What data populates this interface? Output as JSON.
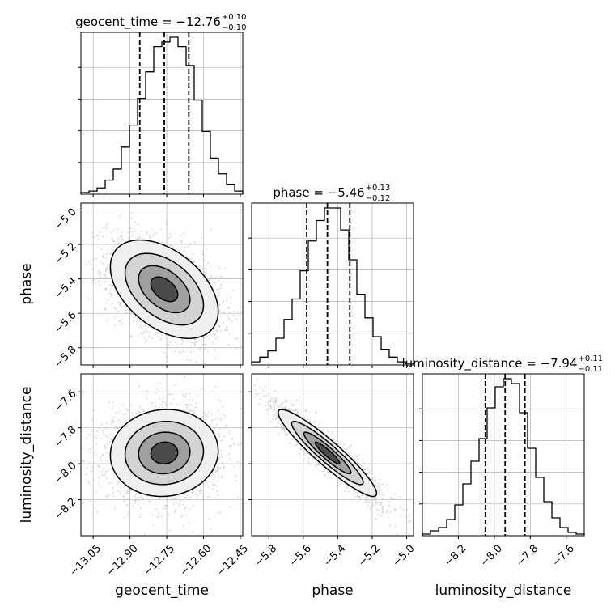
{
  "chart_data": {
    "type": "corner",
    "parameters": [
      "geocent_time",
      "phase",
      "luminosity_distance"
    ],
    "axes": {
      "geocent_time": {
        "range": [
          -13.1,
          -12.44
        ],
        "ticks": [
          -13.05,
          -12.9,
          -12.75,
          -12.6,
          -12.45
        ],
        "tick_labels": [
          "−13.05",
          "−12.90",
          "−12.75",
          "−12.60",
          "−12.45"
        ]
      },
      "phase": {
        "range": [
          -5.9,
          -4.96
        ],
        "ticks": [
          -5.8,
          -5.6,
          -5.4,
          -5.2,
          -5.0
        ],
        "tick_labels": [
          "−5.8",
          "−5.6",
          "−5.4",
          "−5.2",
          "−5.0"
        ]
      },
      "luminosity_distance": {
        "range": [
          -8.4,
          -7.5
        ],
        "ticks": [
          -8.2,
          -8.0,
          -7.8,
          -7.6
        ],
        "tick_labels": [
          "−8.2",
          "−8.0",
          "−7.8",
          "−7.6"
        ]
      }
    },
    "titles": [
      {
        "param": "geocent_time",
        "label": "geocent_time = −12.76",
        "plus": "+0.10",
        "minus": "−0.10"
      },
      {
        "param": "phase",
        "label": "phase = −5.46",
        "plus": "+0.13",
        "minus": "−0.12"
      },
      {
        "param": "luminosity_distance",
        "label": "luminosity_distance = −7.94",
        "plus": "+0.11",
        "minus": "−0.11"
      }
    ],
    "quantiles": {
      "geocent_time": [
        -12.86,
        -12.76,
        -12.66
      ],
      "phase": [
        -5.58,
        -5.46,
        -5.33
      ],
      "luminosity_distance": [
        -8.05,
        -7.94,
        -7.83
      ]
    },
    "histograms": {
      "geocent_time": {
        "edges": [
          -13.1,
          -13.067,
          -13.034,
          -13.001,
          -12.968,
          -12.935,
          -12.902,
          -12.869,
          -12.836,
          -12.803,
          -12.77,
          -12.737,
          -12.704,
          -12.671,
          -12.638,
          -12.605,
          -12.572,
          -12.539,
          -12.506,
          -12.473,
          -12.44
        ],
        "counts": [
          0.01,
          0.02,
          0.04,
          0.09,
          0.16,
          0.3,
          0.44,
          0.61,
          0.78,
          0.94,
          0.97,
          1.0,
          0.94,
          0.82,
          0.6,
          0.4,
          0.23,
          0.13,
          0.06,
          0.02
        ]
      },
      "phase": {
        "edges": [
          -5.9,
          -5.853,
          -5.806,
          -5.759,
          -5.712,
          -5.665,
          -5.618,
          -5.571,
          -5.524,
          -5.477,
          -5.43,
          -5.383,
          -5.336,
          -5.289,
          -5.242,
          -5.195,
          -5.148,
          -5.101,
          -5.054,
          -5.007,
          -4.96
        ],
        "counts": [
          0.02,
          0.05,
          0.09,
          0.17,
          0.29,
          0.42,
          0.6,
          0.79,
          0.92,
          1.0,
          1.0,
          0.86,
          0.67,
          0.45,
          0.3,
          0.18,
          0.1,
          0.05,
          0.02,
          0.01
        ]
      },
      "luminosity_distance": {
        "edges": [
          -8.4,
          -8.355,
          -8.31,
          -8.265,
          -8.22,
          -8.175,
          -8.13,
          -8.085,
          -8.04,
          -7.995,
          -7.95,
          -7.905,
          -7.86,
          -7.815,
          -7.77,
          -7.725,
          -7.68,
          -7.635,
          -7.59,
          -7.545,
          -7.5
        ],
        "counts": [
          0.01,
          0.03,
          0.05,
          0.1,
          0.19,
          0.32,
          0.46,
          0.6,
          0.79,
          0.92,
          0.97,
          0.94,
          0.76,
          0.54,
          0.36,
          0.21,
          0.11,
          0.05,
          0.02,
          0.01
        ]
      }
    },
    "scatter_pairs": [
      {
        "x": "geocent_time",
        "y": "phase",
        "mean": [
          -12.76,
          -5.46
        ],
        "sd": [
          0.1,
          0.13
        ],
        "corr": -0.45
      },
      {
        "x": "geocent_time",
        "y": "luminosity_distance",
        "mean": [
          -12.76,
          -7.94
        ],
        "sd": [
          0.1,
          0.11
        ],
        "corr": 0.05
      },
      {
        "x": "phase",
        "y": "luminosity_distance",
        "mean": [
          -5.46,
          -7.94
        ],
        "sd": [
          0.13,
          0.11
        ],
        "corr": -0.93
      }
    ],
    "grid": true,
    "colors": {
      "line": "#000000",
      "points": "#bdbdbd",
      "grid": "#b0b0b0"
    }
  }
}
